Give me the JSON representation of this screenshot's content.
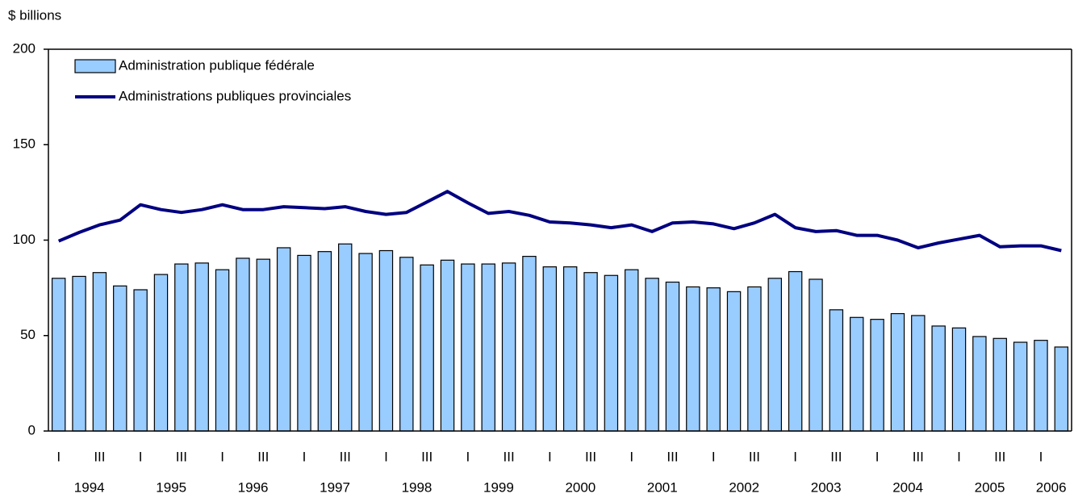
{
  "chart_data": {
    "type": "bar_line",
    "y_label": "$ billions",
    "categories": [
      "I",
      null,
      "III",
      null,
      "I",
      null,
      "III",
      null,
      "I",
      null,
      "III",
      null,
      "I",
      null,
      "III",
      null,
      "I",
      null,
      "III",
      null,
      "I",
      null,
      "III",
      null,
      "I",
      null,
      "III",
      null,
      "I",
      null,
      "III",
      null,
      "I",
      null,
      "III",
      null,
      "I",
      null,
      "III",
      null,
      "I",
      null,
      "III",
      null,
      "I",
      null,
      "III",
      null,
      "I",
      null
    ],
    "years": [
      "1994",
      "1995",
      "1996",
      "1997",
      "1998",
      "1999",
      "2000",
      "2001",
      "2002",
      "2003",
      "2004",
      "2005",
      "2006"
    ],
    "series": [
      {
        "name": "Administration publique fédérale",
        "kind": "bar",
        "color": "#99ccff",
        "values": [
          80,
          81,
          83,
          76,
          74,
          82,
          87.5,
          88,
          84.5,
          90.5,
          90,
          96,
          92,
          94,
          98,
          93,
          94.5,
          91,
          87,
          89.5,
          87.5,
          87.5,
          88,
          91.5,
          86,
          86,
          83,
          81.5,
          84.5,
          80,
          78,
          75.5,
          75,
          73,
          75.5,
          80,
          83.5,
          79.5,
          63.5,
          59.5,
          58.5,
          61.5,
          60.5,
          55,
          54,
          49.5,
          48.5,
          46.5,
          47.5,
          44
        ]
      },
      {
        "name": "Administrations publiques provinciales",
        "kind": "line",
        "color": "#000080",
        "values": [
          99.5,
          104,
          108,
          110.5,
          118.5,
          116,
          114.5,
          116,
          118.5,
          116,
          116,
          117.5,
          117,
          116.5,
          117.5,
          115,
          113.5,
          114.5,
          120,
          125.5,
          119.5,
          114,
          115,
          113,
          109.5,
          109,
          108,
          106.5,
          108,
          104.5,
          109,
          109.5,
          108.5,
          106,
          109,
          113.5,
          106.5,
          104.5,
          105,
          102.5,
          102.5,
          100,
          96,
          98.5,
          100.5,
          102.5,
          96.5,
          97,
          97,
          94.5
        ]
      }
    ],
    "ylim": [
      0,
      200
    ],
    "yticks": [
      0,
      50,
      100,
      150,
      200
    ],
    "legend": "upper left"
  }
}
